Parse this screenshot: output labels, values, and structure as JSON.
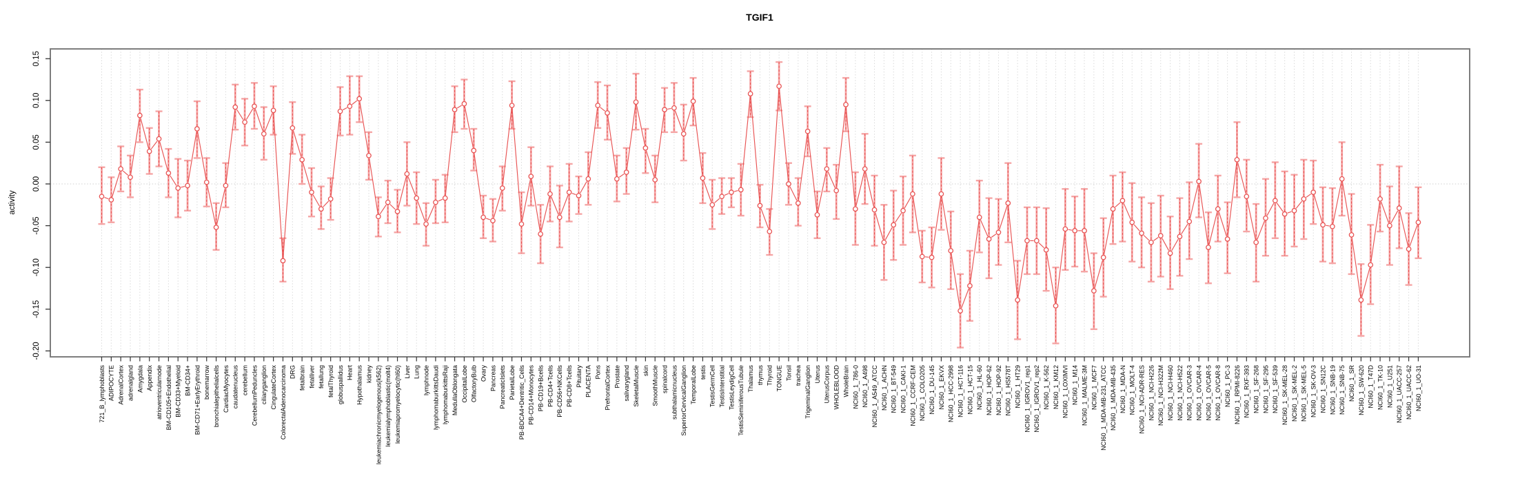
{
  "chart_data": {
    "type": "line",
    "title": "TGIF1",
    "xlabel": "",
    "ylabel": "activity",
    "ylim": [
      -0.2,
      0.15
    ],
    "yticks": [
      0.15,
      0.1,
      0.05,
      0.0,
      -0.05,
      -0.1,
      -0.15,
      -0.2
    ],
    "grid": "vertical-dotted-per-category-plus-zero-line",
    "legend_position": "none",
    "marker": "open-circle",
    "error_bars": true,
    "colors": {
      "series": "#e85252",
      "error_bar": "#f5a5a5",
      "grid": "#d9d9d9",
      "zero_line": "#cfcfcf",
      "frame": "#7d7d7d",
      "tick": "#333333",
      "text": "#000000",
      "background": "#ffffff"
    },
    "categories": [
      "721_B_lymphoblasts",
      "ADIPOCYTE",
      "AdrenalCortex",
      "adrenalgland",
      "Amygdala",
      "Appendix",
      "atrioventricularnode",
      "BM-CD105+Endothelial",
      "BM-CD33+Myeloid",
      "BM-CD34+",
      "BM-CD71+EarlyErythroid",
      "bonemarrow",
      "bronchialepithelialcells",
      "CardiacMyocytes",
      "caudatenucleus",
      "cerebellum",
      "CerebellumPeduncles",
      "ciliaryganglion",
      "CingulateCortex",
      "ColorectalAdenocarcinoma",
      "DRG",
      "fetalbrain",
      "fetalliver",
      "fetallung",
      "fetalThyroid",
      "globuspallidus",
      "Heart",
      "Hypothalamus",
      "kidney",
      "leukemiachronicmyelogenous(k562)",
      "leukemialymphoblastic(molt4)",
      "leukemiapromyelocytic(hl60)",
      "Liver",
      "Lung",
      "lymphnode",
      "lymphomaburkittsDaudi",
      "lymphomaburkittsRaji",
      "MedullaOblongata",
      "OccipitalLobe",
      "OlfactoryBulb",
      "Ovary",
      "Pancreas",
      "PancreaticIslets",
      "ParietalLobe",
      "PB-BDCA4+Dentritic_Cells",
      "PB-CD14+Monocytes",
      "PB-CD19+Bcells",
      "PB-CD4+Tcells",
      "PB-CD56+NKCells",
      "PB-CD8+Tcells",
      "Pituitary",
      "PLACENTA",
      "Pons",
      "PrefrontalCortex",
      "Prostate",
      "salivarygland",
      "SkeletalMuscle",
      "skin",
      "SmoothMuscle",
      "spinalcord",
      "subthalamicnucleus",
      "SuperiorCervicalGanglion",
      "TemporalLobe",
      "testis",
      "TestisGermCell",
      "TestisInterstitial",
      "TestisLeydigCell",
      "TestisSeminiferousTubule",
      "Thalamus",
      "thymus",
      "Thyroid",
      "TONGUE",
      "Tonsil",
      "trachea",
      "TrigeminalGanglion",
      "Uterus",
      "UterusCorpus",
      "WHOLEBLOOD",
      "WholeBrain",
      "NCI60_1_786-0",
      "NCI60_1_A498",
      "NCI60_1_A549_ATCC",
      "NCI60_1_ACHN",
      "NCI60_1_BT-549",
      "NCI60_1_CAKI-1",
      "NCI60_1_CCRF-CEM",
      "NCI60_1_COLO205",
      "NCI60_1_DU-145",
      "NCI60_1_EKVX",
      "NCI60_1_HCC-2998",
      "NCI60_1_HCT-116",
      "NCI60_1_HCT-15",
      "NCI60_1_HL-60",
      "NCI60_1_HOP-62",
      "NCI60_1_HOP-92",
      "NCI60_1_HS578T",
      "NCI60_1_HT29",
      "NCI60_1_IGROV1_rep1",
      "NCI60_1_IGROV1_rep2",
      "NCI60_1_K-562",
      "NCI60_1_KM12",
      "NCI60_1_LOXIMVI",
      "NCI60_1_M14",
      "NCI60_1_MALME-3M",
      "NCI60_1_MCF7",
      "NCI60_1_MDA-MB-231_ATCC",
      "NCI60_1_MDA-MB-435",
      "NCI60_1_MDA-N",
      "NCI60_1_MOLT-4",
      "NCI60_1_NCI-ADR-RES",
      "NCI60_1_NCI-H226",
      "NCI60_1_NCI-H322M",
      "NCI60_1_NCI-H460",
      "NCI60_1_NCI-H522",
      "NCI60_1_OVCAR-3",
      "NCI60_1_OVCAR-4",
      "NCI60_1_OVCAR-5",
      "NCI60_1_OVCAR-8",
      "NCI60_1_PC-3",
      "NCI60_1_RPMI-8226",
      "NCI60_1_RXF-393",
      "NCI60_1_SF-268",
      "NCI60_1_SF-295",
      "NCI60_1_SF-539",
      "NCI60_1_SK-MEL-28",
      "NCI60_1_SK-MEL-2",
      "NCI60_1_SK-MEL-5",
      "NCI60_1_SK-OV-3",
      "NCI60_1_SN12C",
      "NCI60_1_SNB-19",
      "NCI60_1_SNB-75",
      "NCI60_1_SR",
      "NCI60_1_SW-620",
      "NCI60_1_T47D",
      "NCI60_1_TK-10",
      "NCI60_1_U251",
      "NCI60_1_UACC-257",
      "NCI60_1_UACC-62",
      "NCI60_1_UO-31"
    ],
    "series": [
      {
        "name": "activity",
        "values": [
          -0.015,
          -0.019,
          0.018,
          0.008,
          0.082,
          0.039,
          0.054,
          0.013,
          -0.005,
          -0.002,
          0.066,
          0.002,
          -0.052,
          -0.002,
          0.092,
          0.074,
          0.093,
          0.06,
          0.088,
          -0.092,
          0.067,
          0.029,
          -0.01,
          -0.03,
          -0.018,
          0.087,
          0.093,
          0.102,
          0.034,
          -0.039,
          -0.022,
          -0.033,
          0.012,
          -0.017,
          -0.048,
          -0.022,
          -0.017,
          0.089,
          0.096,
          0.04,
          -0.04,
          -0.044,
          -0.005,
          0.094,
          -0.048,
          0.009,
          -0.06,
          -0.012,
          -0.04,
          -0.01,
          -0.014,
          0.006,
          0.094,
          0.085,
          0.006,
          0.014,
          0.098,
          0.043,
          0.005,
          0.089,
          0.091,
          0.06,
          0.099,
          0.007,
          -0.025,
          -0.015,
          -0.01,
          -0.007,
          0.108,
          -0.026,
          -0.057,
          0.117,
          0.0,
          -0.023,
          0.063,
          -0.037,
          0.018,
          -0.008,
          0.095,
          -0.03,
          0.018,
          -0.031,
          -0.07,
          -0.049,
          -0.032,
          -0.012,
          -0.087,
          -0.088,
          -0.012,
          -0.08,
          -0.152,
          -0.122,
          -0.04,
          -0.066,
          -0.058,
          -0.023,
          -0.139,
          -0.068,
          -0.068,
          -0.079,
          -0.146,
          -0.054,
          -0.056,
          -0.056,
          -0.128,
          -0.088,
          -0.03,
          -0.02,
          -0.046,
          -0.059,
          -0.07,
          -0.062,
          -0.083,
          -0.063,
          -0.045,
          0.003,
          -0.076,
          -0.03,
          -0.066,
          0.029,
          -0.015,
          -0.07,
          -0.041,
          -0.02,
          -0.036,
          -0.032,
          -0.018,
          -0.01,
          -0.049,
          -0.051,
          0.006,
          -0.061,
          -0.139,
          -0.097,
          -0.018,
          -0.05,
          -0.029,
          -0.078,
          -0.046
        ],
        "err_hi": [
          0.02,
          0.008,
          0.045,
          0.034,
          0.113,
          0.067,
          0.087,
          0.042,
          0.03,
          0.028,
          0.099,
          0.031,
          -0.023,
          0.025,
          0.119,
          0.102,
          0.121,
          0.092,
          0.117,
          -0.065,
          0.098,
          0.059,
          0.019,
          -0.003,
          0.007,
          0.116,
          0.129,
          0.129,
          0.062,
          -0.016,
          0.004,
          -0.007,
          0.05,
          0.014,
          -0.023,
          0.005,
          0.011,
          0.117,
          0.125,
          0.066,
          -0.014,
          -0.018,
          0.021,
          0.123,
          -0.01,
          0.044,
          -0.025,
          0.021,
          -0.002,
          0.024,
          0.009,
          0.038,
          0.122,
          0.118,
          0.034,
          0.043,
          0.132,
          0.066,
          0.034,
          0.115,
          0.121,
          0.095,
          0.127,
          0.037,
          0.005,
          0.007,
          0.007,
          0.024,
          0.135,
          -0.001,
          -0.03,
          0.146,
          0.025,
          0.007,
          0.093,
          -0.009,
          0.043,
          0.023,
          0.127,
          0.014,
          0.06,
          0.01,
          -0.025,
          -0.008,
          0.009,
          0.034,
          -0.056,
          -0.052,
          0.031,
          -0.033,
          -0.108,
          -0.08,
          0.004,
          -0.017,
          -0.018,
          0.025,
          -0.092,
          -0.028,
          -0.028,
          -0.029,
          -0.1,
          -0.006,
          -0.015,
          -0.006,
          -0.083,
          -0.041,
          0.01,
          0.014,
          0.001,
          -0.016,
          -0.023,
          -0.014,
          -0.039,
          -0.017,
          0.002,
          0.048,
          -0.034,
          0.01,
          -0.022,
          0.074,
          0.029,
          -0.024,
          0.006,
          0.026,
          0.015,
          0.011,
          0.029,
          0.028,
          -0.004,
          -0.005,
          0.05,
          -0.012,
          -0.096,
          -0.049,
          0.023,
          -0.003,
          0.021,
          -0.035,
          -0.004
        ],
        "err_lo": [
          -0.048,
          -0.046,
          -0.009,
          -0.016,
          0.05,
          0.012,
          0.021,
          -0.016,
          -0.04,
          -0.032,
          0.031,
          -0.027,
          -0.079,
          -0.028,
          0.065,
          0.046,
          0.066,
          0.029,
          0.059,
          -0.117,
          0.036,
          0.0,
          -0.039,
          -0.054,
          -0.043,
          0.058,
          0.059,
          0.074,
          0.005,
          -0.063,
          -0.047,
          -0.058,
          -0.026,
          -0.048,
          -0.074,
          -0.047,
          -0.046,
          0.062,
          0.066,
          0.016,
          -0.065,
          -0.069,
          -0.032,
          0.066,
          -0.083,
          -0.026,
          -0.095,
          -0.045,
          -0.076,
          -0.045,
          -0.036,
          -0.025,
          0.067,
          0.053,
          -0.021,
          -0.012,
          0.065,
          0.013,
          -0.022,
          0.062,
          0.062,
          0.028,
          0.07,
          -0.023,
          -0.054,
          -0.036,
          -0.028,
          -0.038,
          0.08,
          -0.052,
          -0.085,
          0.088,
          -0.025,
          -0.05,
          0.033,
          -0.065,
          -0.009,
          -0.042,
          0.063,
          -0.073,
          -0.024,
          -0.074,
          -0.115,
          -0.091,
          -0.073,
          -0.058,
          -0.118,
          -0.124,
          -0.055,
          -0.126,
          -0.196,
          -0.164,
          -0.082,
          -0.113,
          -0.097,
          -0.07,
          -0.186,
          -0.108,
          -0.108,
          -0.128,
          -0.191,
          -0.103,
          -0.099,
          -0.105,
          -0.174,
          -0.135,
          -0.072,
          -0.069,
          -0.093,
          -0.1,
          -0.117,
          -0.111,
          -0.126,
          -0.11,
          -0.09,
          -0.04,
          -0.119,
          -0.069,
          -0.107,
          -0.016,
          -0.057,
          -0.117,
          -0.086,
          -0.065,
          -0.086,
          -0.075,
          -0.066,
          -0.048,
          -0.093,
          -0.095,
          -0.038,
          -0.108,
          -0.182,
          -0.144,
          -0.057,
          -0.097,
          -0.077,
          -0.121,
          -0.089
        ]
      }
    ]
  }
}
